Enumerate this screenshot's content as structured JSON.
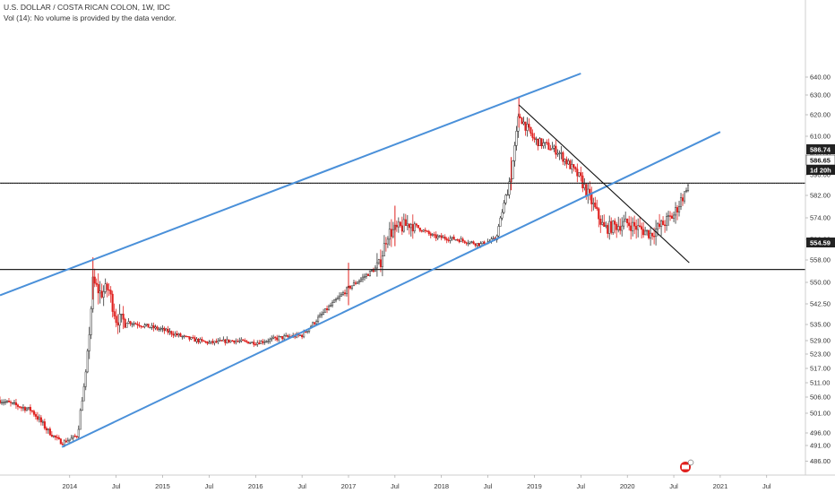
{
  "header": {
    "title": "U.S. DOLLAR / COSTA RICAN COLON, 1W, IDC",
    "volume_note": "Vol (14): No volume is provided by the data vendor."
  },
  "price_tags": {
    "upper": "586.74",
    "current": "586.65",
    "countdown": "1d 20h",
    "lower": "554.59"
  },
  "colors": {
    "down": "#e0201e",
    "up": "#333333",
    "channel": "#4a90d9",
    "level": "#222222",
    "countdown_bg": "#1f1f1f"
  },
  "chart_data": {
    "type": "candlestick",
    "y_axis": {
      "range": [
        482.5,
        641.5
      ],
      "ticks": [
        486.0,
        491.0,
        496.0,
        501.0,
        506.0,
        511.0,
        517.0,
        523.0,
        529.0,
        535.0,
        542.5,
        550.0,
        558.0,
        566.0,
        574.0,
        582.0,
        590.0,
        600.0,
        610.0,
        620.0,
        630.0,
        640.0
      ],
      "tick_labels": [
        "486.00",
        "491.00",
        "496.00",
        "501.00",
        "506.00",
        "511.00",
        "517.00",
        "523.00",
        "529.00",
        "535.00",
        "542.50",
        "550.00",
        "558.00",
        "566.00",
        "574.00",
        "582.00",
        "590.00",
        "600.00",
        "610.00",
        "620.00",
        "630.00",
        "640.00"
      ]
    },
    "x_axis": {
      "range": [
        "2013-04",
        "2021-12"
      ],
      "ticks": [
        "2014-01",
        "2014-07",
        "2015-01",
        "2015-07",
        "2016-01",
        "2016-07",
        "2017-01",
        "2017-07",
        "2018-01",
        "2018-07",
        "2019-01",
        "2019-07",
        "2020-01",
        "2020-07",
        "2021-01",
        "2021-07"
      ],
      "tick_labels": [
        "2014",
        "Jul",
        "2015",
        "Jul",
        "2016",
        "Jul",
        "2017",
        "Jul",
        "2018",
        "Jul",
        "2019",
        "Jul",
        "2020",
        "Jul",
        "2021",
        "Jul"
      ]
    },
    "price_path": [
      [
        "2013-04",
        505
      ],
      [
        "2013-08",
        502
      ],
      [
        "2013-12",
        492
      ],
      [
        "2014-02",
        495
      ],
      [
        "2014-03",
        512
      ],
      [
        "2014-04",
        550
      ],
      [
        "2014-05",
        546
      ],
      [
        "2014-06",
        548
      ],
      [
        "2014-07",
        537
      ],
      [
        "2014-10",
        535
      ],
      [
        "2015-01",
        533
      ],
      [
        "2015-04",
        530
      ],
      [
        "2015-07",
        528
      ],
      [
        "2015-10",
        529
      ],
      [
        "2016-01",
        528
      ],
      [
        "2016-04",
        530
      ],
      [
        "2016-07",
        531
      ],
      [
        "2016-10",
        540
      ],
      [
        "2017-01",
        548
      ],
      [
        "2017-05",
        556
      ],
      [
        "2017-06",
        568
      ],
      [
        "2017-09",
        572
      ],
      [
        "2017-12",
        567
      ],
      [
        "2018-03",
        566
      ],
      [
        "2018-06",
        564
      ],
      [
        "2018-08",
        566
      ],
      [
        "2018-10",
        590
      ],
      [
        "2018-11",
        620
      ],
      [
        "2019-01",
        608
      ],
      [
        "2019-04",
        602
      ],
      [
        "2019-07",
        588
      ],
      [
        "2019-10",
        570
      ],
      [
        "2020-01",
        572
      ],
      [
        "2020-04",
        568
      ],
      [
        "2020-07",
        575
      ],
      [
        "2020-09",
        586.65
      ]
    ],
    "horizontal_levels": [
      586.74,
      554.59
    ],
    "trendlines": [
      {
        "name": "channel-upper",
        "from": [
          "2013-04",
          545.5
        ],
        "to": [
          "2019-07",
          642
        ]
      },
      {
        "name": "channel-lower",
        "from": [
          "2013-12",
          490.5
        ],
        "to": [
          "2021-01",
          612
        ]
      },
      {
        "name": "downtrend",
        "from": [
          "2018-11",
          625
        ],
        "to": [
          "2020-09",
          557
        ]
      }
    ],
    "events": [
      "2014-04",
      "2017-01",
      "2017-07",
      "2018-10",
      "2018-11"
    ],
    "last_price": 586.65
  }
}
